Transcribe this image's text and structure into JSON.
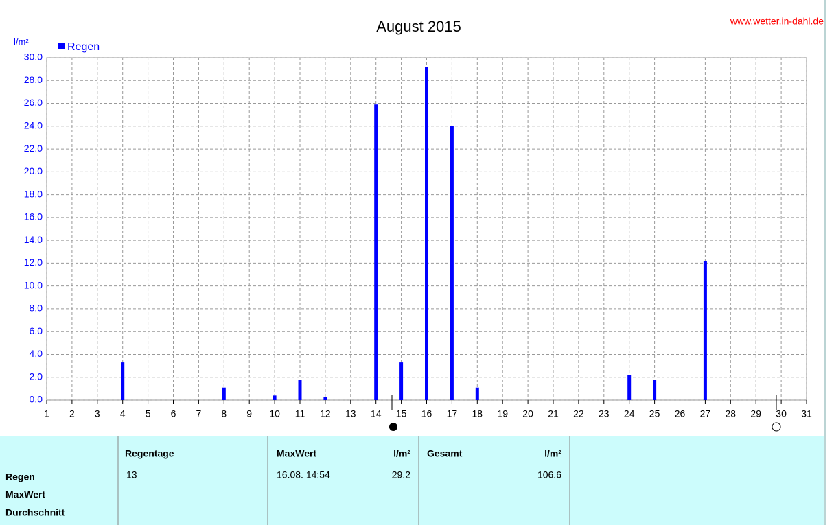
{
  "chart_data": {
    "type": "bar",
    "title": "August 2015",
    "source": "www.wetter.in-dahl.de",
    "y_label": "l/m²",
    "series": [
      {
        "name": "Regen",
        "color": "#0000ff",
        "x": [
          1,
          2,
          3,
          4,
          5,
          6,
          7,
          8,
          9,
          10,
          11,
          12,
          13,
          14,
          15,
          16,
          17,
          18,
          19,
          20,
          21,
          22,
          23,
          24,
          25,
          26,
          27,
          28,
          29,
          30
        ],
        "values": [
          0,
          0,
          0,
          3.3,
          0,
          0,
          0,
          1.1,
          0,
          0.4,
          1.8,
          0.3,
          0,
          25.9,
          3.3,
          29.2,
          24.0,
          1.1,
          0,
          0,
          0,
          0,
          0,
          2.2,
          1.8,
          0,
          12.2,
          0,
          0,
          0
        ]
      }
    ],
    "xlim": [
      1,
      31
    ],
    "xticks": [
      1,
      2,
      3,
      4,
      5,
      6,
      7,
      8,
      9,
      10,
      11,
      12,
      13,
      14,
      15,
      16,
      17,
      18,
      19,
      20,
      21,
      22,
      23,
      24,
      25,
      26,
      27,
      28,
      29,
      30,
      31
    ],
    "ylim": [
      0,
      30
    ],
    "yticks": [
      {
        "value": 0,
        "label": "0.0"
      },
      {
        "value": 2,
        "label": "2.0"
      },
      {
        "value": 4,
        "label": "4.0"
      },
      {
        "value": 6,
        "label": "6.0"
      },
      {
        "value": 8,
        "label": "8.0"
      },
      {
        "value": 10,
        "label": "10.0"
      },
      {
        "value": 12,
        "label": "12.0"
      },
      {
        "value": 14,
        "label": "14.0"
      },
      {
        "value": 16,
        "label": "16.0"
      },
      {
        "value": 18,
        "label": "18.0"
      },
      {
        "value": 20,
        "label": "20.0"
      },
      {
        "value": 22,
        "label": "22.0"
      },
      {
        "value": 24,
        "label": "24.0"
      },
      {
        "value": 26,
        "label": "26.0"
      },
      {
        "value": 28,
        "label": "28.0"
      },
      {
        "value": 30,
        "label": "30.0"
      }
    ],
    "grid": true
  },
  "table": {
    "row_labels": [
      "Regen",
      "MaxWert",
      "Durchschnitt"
    ],
    "columns": [
      {
        "header": "Regentage",
        "value": 13
      },
      {
        "header": "MaxWert",
        "unit": "l/m²",
        "time": "16.08. 14:54",
        "value": 29.2
      },
      {
        "header": "Gesamt",
        "unit": "l/m²",
        "value": 106.6
      }
    ]
  }
}
